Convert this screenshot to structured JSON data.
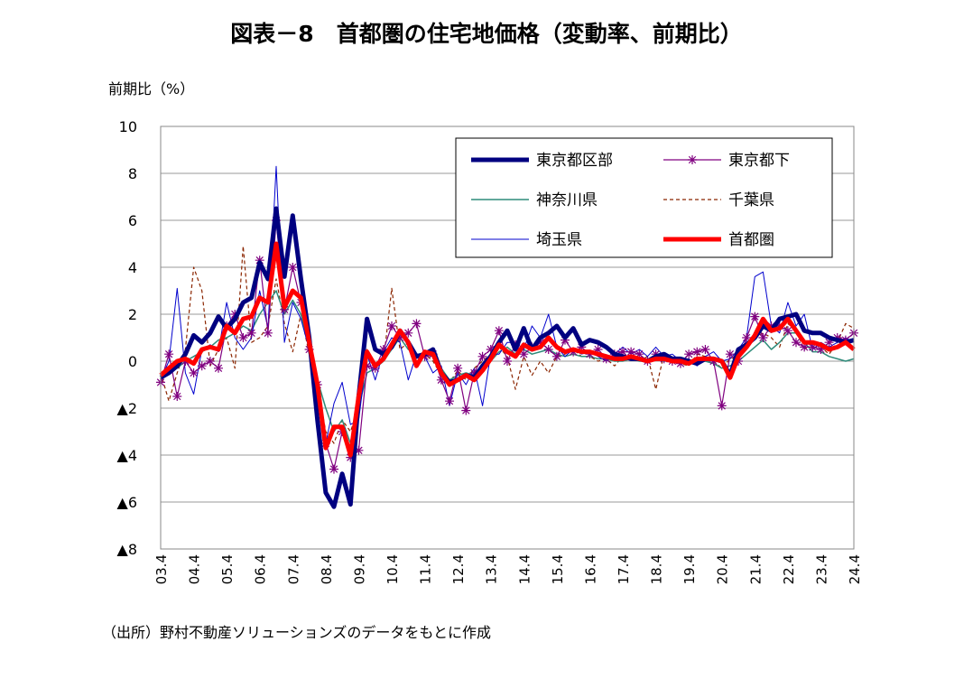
{
  "chart_data": {
    "type": "line",
    "title": "図表－8　首都圏の住宅地価格（変動率、前期比）",
    "ylabel": "前期比（%）",
    "source": "（出所）野村不動産ソリューションズのデータをもとに作成",
    "ylim": [
      -8,
      10
    ],
    "yticks": [
      {
        "value": -8,
        "label": "▲8"
      },
      {
        "value": -6,
        "label": "▲6"
      },
      {
        "value": -4,
        "label": "▲4"
      },
      {
        "value": -2,
        "label": "▲2"
      },
      0,
      2,
      4,
      6,
      8,
      10
    ],
    "grid": true,
    "legend": "upper right",
    "categories": [
      "03.4",
      null,
      null,
      null,
      "04.4",
      null,
      null,
      null,
      "05.4",
      null,
      null,
      null,
      "06.4",
      null,
      null,
      null,
      "07.4",
      null,
      null,
      null,
      "08.4",
      null,
      null,
      null,
      "09.4",
      null,
      null,
      null,
      "10.4",
      null,
      null,
      null,
      "11.4",
      null,
      null,
      null,
      "12.4",
      null,
      null,
      null,
      "13.4",
      null,
      null,
      null,
      "14.4",
      null,
      null,
      null,
      "15.4",
      null,
      null,
      null,
      "16.4",
      null,
      null,
      null,
      "17.4",
      null,
      null,
      null,
      "18.4",
      null,
      null,
      null,
      "19.4",
      null,
      null,
      null,
      "20.4",
      null,
      null,
      null,
      "21.4",
      null,
      null,
      null,
      "22.4",
      null,
      null,
      null,
      "23.4",
      null,
      null,
      null,
      "24.4"
    ],
    "series": [
      {
        "name": "東京都区部",
        "color": "#000080",
        "width": 5,
        "dash": "none",
        "marker": "none",
        "values": [
          -0.7,
          -0.5,
          -0.2,
          0.3,
          1.1,
          0.8,
          1.2,
          1.9,
          1.4,
          1.8,
          2.5,
          2.7,
          4.2,
          3.5,
          6.5,
          3.6,
          6.2,
          3.5,
          1.0,
          -2.5,
          -5.6,
          -6.2,
          -4.8,
          -6.1,
          -1.5,
          1.8,
          0.5,
          0.3,
          0.6,
          1.3,
          0.8,
          0.2,
          0.3,
          0.5,
          -0.5,
          -0.9,
          -0.8,
          -0.6,
          -0.7,
          -0.2,
          0.2,
          0.8,
          1.3,
          0.5,
          1.4,
          0.5,
          1.0,
          1.2,
          1.5,
          1.0,
          1.4,
          0.7,
          0.9,
          0.8,
          0.6,
          0.3,
          0.2,
          0.1,
          0.1,
          0.0,
          0.2,
          0.3,
          0.1,
          0.1,
          0.0,
          -0.1,
          0.1,
          0.1,
          0.0,
          -0.6,
          0.5,
          0.7,
          1.0,
          1.5,
          1.3,
          1.8,
          1.9,
          2.0,
          1.3,
          1.2,
          1.2,
          1.0,
          0.9,
          0.8,
          0.9
        ]
      },
      {
        "name": "東京都下",
        "color": "#800080",
        "width": 1.2,
        "dash": "none",
        "marker": "star",
        "values": [
          -0.9,
          0.3,
          -1.5,
          0.0,
          -0.5,
          -0.2,
          0.0,
          -0.3,
          1.5,
          2.0,
          1.0,
          1.2,
          4.3,
          1.2,
          6.0,
          2.2,
          4.0,
          2.5,
          0.5,
          -1.0,
          -3.5,
          -4.6,
          -3.0,
          -4.1,
          -3.8,
          -0.2,
          -0.3,
          0.5,
          1.5,
          1.0,
          1.2,
          1.6,
          0.2,
          0.3,
          -0.8,
          -1.7,
          -0.3,
          -2.1,
          -0.5,
          0.2,
          0.5,
          1.3,
          0.0,
          0.7,
          0.3,
          0.6,
          0.8,
          0.5,
          0.2,
          0.9,
          0.4,
          0.6,
          0.3,
          0.5,
          0.1,
          0.3,
          0.4,
          0.4,
          0.3,
          0.0,
          0.3,
          0.1,
          0.0,
          -0.1,
          0.3,
          0.4,
          0.5,
          0.0,
          -1.9,
          0.3,
          0.0,
          1.0,
          1.9,
          1.0,
          1.5,
          1.5,
          1.3,
          0.8,
          0.6,
          0.6,
          0.5,
          0.8,
          1.0,
          0.9,
          1.2
        ]
      },
      {
        "name": "神奈川県",
        "color": "#2e8b7a",
        "width": 1.5,
        "dash": "none",
        "marker": "none",
        "values": [
          -0.6,
          -0.4,
          -0.3,
          0.0,
          0.2,
          0.4,
          0.6,
          0.9,
          1.0,
          1.2,
          1.5,
          1.3,
          2.0,
          2.5,
          3.0,
          2.0,
          2.6,
          2.0,
          0.5,
          -0.8,
          -2.0,
          -3.0,
          -2.5,
          -3.5,
          -2.0,
          -0.5,
          -0.3,
          0.0,
          0.5,
          1.0,
          0.5,
          0.3,
          0.3,
          0.2,
          -0.3,
          -0.8,
          -0.6,
          -0.5,
          -0.6,
          -0.3,
          0.0,
          0.4,
          0.6,
          0.3,
          0.5,
          0.3,
          0.4,
          0.5,
          0.3,
          0.2,
          0.3,
          0.2,
          0.2,
          0.1,
          0.1,
          0.0,
          0.0,
          0.1,
          0.0,
          0.0,
          0.1,
          0.0,
          0.0,
          -0.1,
          0.0,
          0.0,
          0.0,
          -0.1,
          -0.3,
          -0.2,
          0.0,
          0.3,
          0.6,
          0.9,
          0.5,
          0.8,
          1.2,
          1.2,
          0.8,
          0.4,
          0.4,
          0.2,
          0.1,
          0.0,
          0.1
        ]
      },
      {
        "name": "千葉県",
        "color": "#8b2500",
        "width": 1.2,
        "dash": "4 3",
        "marker": "none",
        "values": [
          -0.5,
          -1.7,
          -0.5,
          0.5,
          4.0,
          3.0,
          -0.2,
          0.5,
          1.0,
          -0.3,
          4.9,
          0.8,
          1.0,
          1.5,
          3.5,
          1.6,
          0.4,
          2.0,
          0.3,
          -1.0,
          -3.0,
          -3.5,
          -2.5,
          -3.0,
          -2.0,
          0.5,
          -0.2,
          0.0,
          3.1,
          0.5,
          0.8,
          0.2,
          0.3,
          0.0,
          -0.6,
          -0.9,
          -0.4,
          -0.8,
          -0.3,
          0.0,
          0.3,
          0.6,
          0.2,
          -1.2,
          0.2,
          -0.6,
          0.0,
          -0.5,
          0.2,
          0.3,
          0.5,
          0.2,
          0.2,
          0.0,
          0.1,
          -0.2,
          0.2,
          0.1,
          0.0,
          0.2,
          -1.2,
          0.3,
          0.1,
          -0.1,
          -0.2,
          0.3,
          0.2,
          0.0,
          -0.3,
          0.1,
          0.2,
          0.5,
          1.0,
          1.2,
          1.0,
          0.6,
          1.6,
          1.3,
          0.5,
          0.8,
          0.6,
          0.3,
          0.8,
          1.6,
          1.4
        ]
      },
      {
        "name": "埼玉県",
        "color": "#0000cd",
        "width": 1,
        "dash": "none",
        "marker": "none",
        "values": [
          -0.8,
          0.0,
          3.1,
          -0.5,
          -1.4,
          0.5,
          0.7,
          0.4,
          2.5,
          1.0,
          0.5,
          1.0,
          3.0,
          1.4,
          8.3,
          0.8,
          2.5,
          1.8,
          0.5,
          -1.5,
          -3.5,
          -1.8,
          -0.9,
          -2.7,
          -2.5,
          0.3,
          -0.8,
          0.4,
          1.0,
          0.8,
          -0.8,
          0.3,
          0.2,
          -0.5,
          -0.2,
          -1.9,
          -0.5,
          -1.0,
          -0.3,
          -1.9,
          0.3,
          0.3,
          0.8,
          0.8,
          0.5,
          1.5,
          1.0,
          2.0,
          0.6,
          0.2,
          0.5,
          0.3,
          0.4,
          0.2,
          0.0,
          0.3,
          0.6,
          0.3,
          0.5,
          0.2,
          0.6,
          0.2,
          0.3,
          0.0,
          0.1,
          -0.2,
          0.2,
          0.4,
          0.0,
          0.1,
          0.5,
          1.0,
          3.6,
          3.8,
          1.5,
          1.2,
          2.5,
          1.5,
          2.0,
          0.5,
          0.8,
          0.6,
          0.8,
          1.0,
          0.8
        ]
      },
      {
        "name": "首都圏",
        "color": "#ff0000",
        "width": 5,
        "dash": "none",
        "marker": "none",
        "values": [
          -0.6,
          -0.3,
          0.0,
          0.1,
          -0.1,
          0.5,
          0.6,
          0.5,
          1.5,
          1.2,
          1.8,
          1.9,
          2.7,
          2.5,
          5.0,
          2.3,
          3.0,
          2.7,
          0.8,
          -1.0,
          -3.7,
          -2.8,
          -2.8,
          -4.0,
          -1.5,
          0.4,
          -0.2,
          0.1,
          0.7,
          1.3,
          0.8,
          -0.2,
          0.4,
          0.3,
          -0.5,
          -1.0,
          -0.8,
          -0.6,
          -0.8,
          -0.4,
          0.1,
          0.7,
          0.4,
          0.2,
          0.7,
          0.5,
          0.6,
          1.0,
          0.6,
          0.4,
          0.5,
          0.4,
          0.4,
          0.3,
          0.2,
          0.1,
          0.1,
          0.2,
          0.1,
          0.0,
          0.1,
          0.1,
          0.0,
          0.0,
          -0.1,
          0.1,
          0.1,
          0.1,
          0.0,
          -0.7,
          0.2,
          0.6,
          1.1,
          1.8,
          1.3,
          1.4,
          1.8,
          1.3,
          0.8,
          0.8,
          0.7,
          0.5,
          0.6,
          0.8,
          0.5
        ]
      }
    ]
  }
}
